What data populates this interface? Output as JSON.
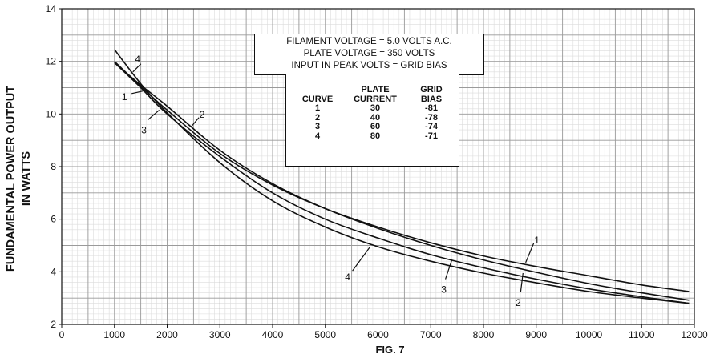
{
  "chart_data": {
    "type": "line",
    "xlabel": "FIG. 7",
    "ylabel_lines": [
      "FUNDAMENTAL POWER OUTPUT",
      "IN WATTS"
    ],
    "xlim": [
      0,
      12000
    ],
    "ylim": [
      2,
      14
    ],
    "xticks": [
      0,
      1000,
      2000,
      3000,
      4000,
      5000,
      6000,
      7000,
      8000,
      9000,
      10000,
      11000,
      12000
    ],
    "yticks": [
      2,
      4,
      6,
      8,
      10,
      12,
      14
    ],
    "grid": true,
    "info_lines": [
      "FILAMENT VOLTAGE = 5.0 VOLTS A.C.",
      "PLATE VOLTAGE = 350 VOLTS",
      "INPUT IN PEAK VOLTS = GRID BIAS"
    ],
    "table": {
      "headers": [
        [
          "CURVE"
        ],
        [
          "PLATE",
          "CURRENT"
        ],
        [
          "GRID",
          "BIAS"
        ]
      ],
      "rows": [
        [
          "1",
          "30",
          "-81"
        ],
        [
          "2",
          "40",
          "-78"
        ],
        [
          "3",
          "60",
          "-74"
        ],
        [
          "4",
          "80",
          "-71"
        ]
      ]
    },
    "series": [
      {
        "name": "1",
        "x": [
          1000,
          1500,
          2000,
          3000,
          4000,
          5000,
          6000,
          7000,
          8000,
          9000,
          10000,
          11000,
          11900
        ],
        "y": [
          12.0,
          11.05,
          10.15,
          8.5,
          7.3,
          6.4,
          5.7,
          5.1,
          4.6,
          4.2,
          3.85,
          3.5,
          3.25
        ]
      },
      {
        "name": "2",
        "x": [
          1000,
          1500,
          2000,
          3000,
          4000,
          5000,
          6000,
          7000,
          8000,
          9000,
          10000,
          11000,
          11900
        ],
        "y": [
          11.95,
          11.1,
          10.3,
          8.62,
          7.35,
          6.4,
          5.65,
          5.0,
          4.45,
          3.98,
          3.55,
          3.2,
          2.92
        ]
      },
      {
        "name": "3",
        "x": [
          1000,
          1500,
          2000,
          3000,
          4000,
          5000,
          6000,
          7000,
          8000,
          9000,
          10000,
          11000,
          11900
        ],
        "y": [
          11.95,
          11.0,
          10.0,
          8.38,
          7.0,
          6.0,
          5.28,
          4.65,
          4.15,
          3.72,
          3.35,
          3.05,
          2.8
        ]
      },
      {
        "name": "4",
        "x": [
          1000,
          1500,
          2000,
          3000,
          4000,
          5000,
          6000,
          7000,
          8000,
          9000,
          10000,
          11000,
          11900
        ],
        "y": [
          12.45,
          11.15,
          10.05,
          8.15,
          6.7,
          5.7,
          4.95,
          4.4,
          3.95,
          3.58,
          3.25,
          3.0,
          2.8
        ]
      }
    ]
  }
}
